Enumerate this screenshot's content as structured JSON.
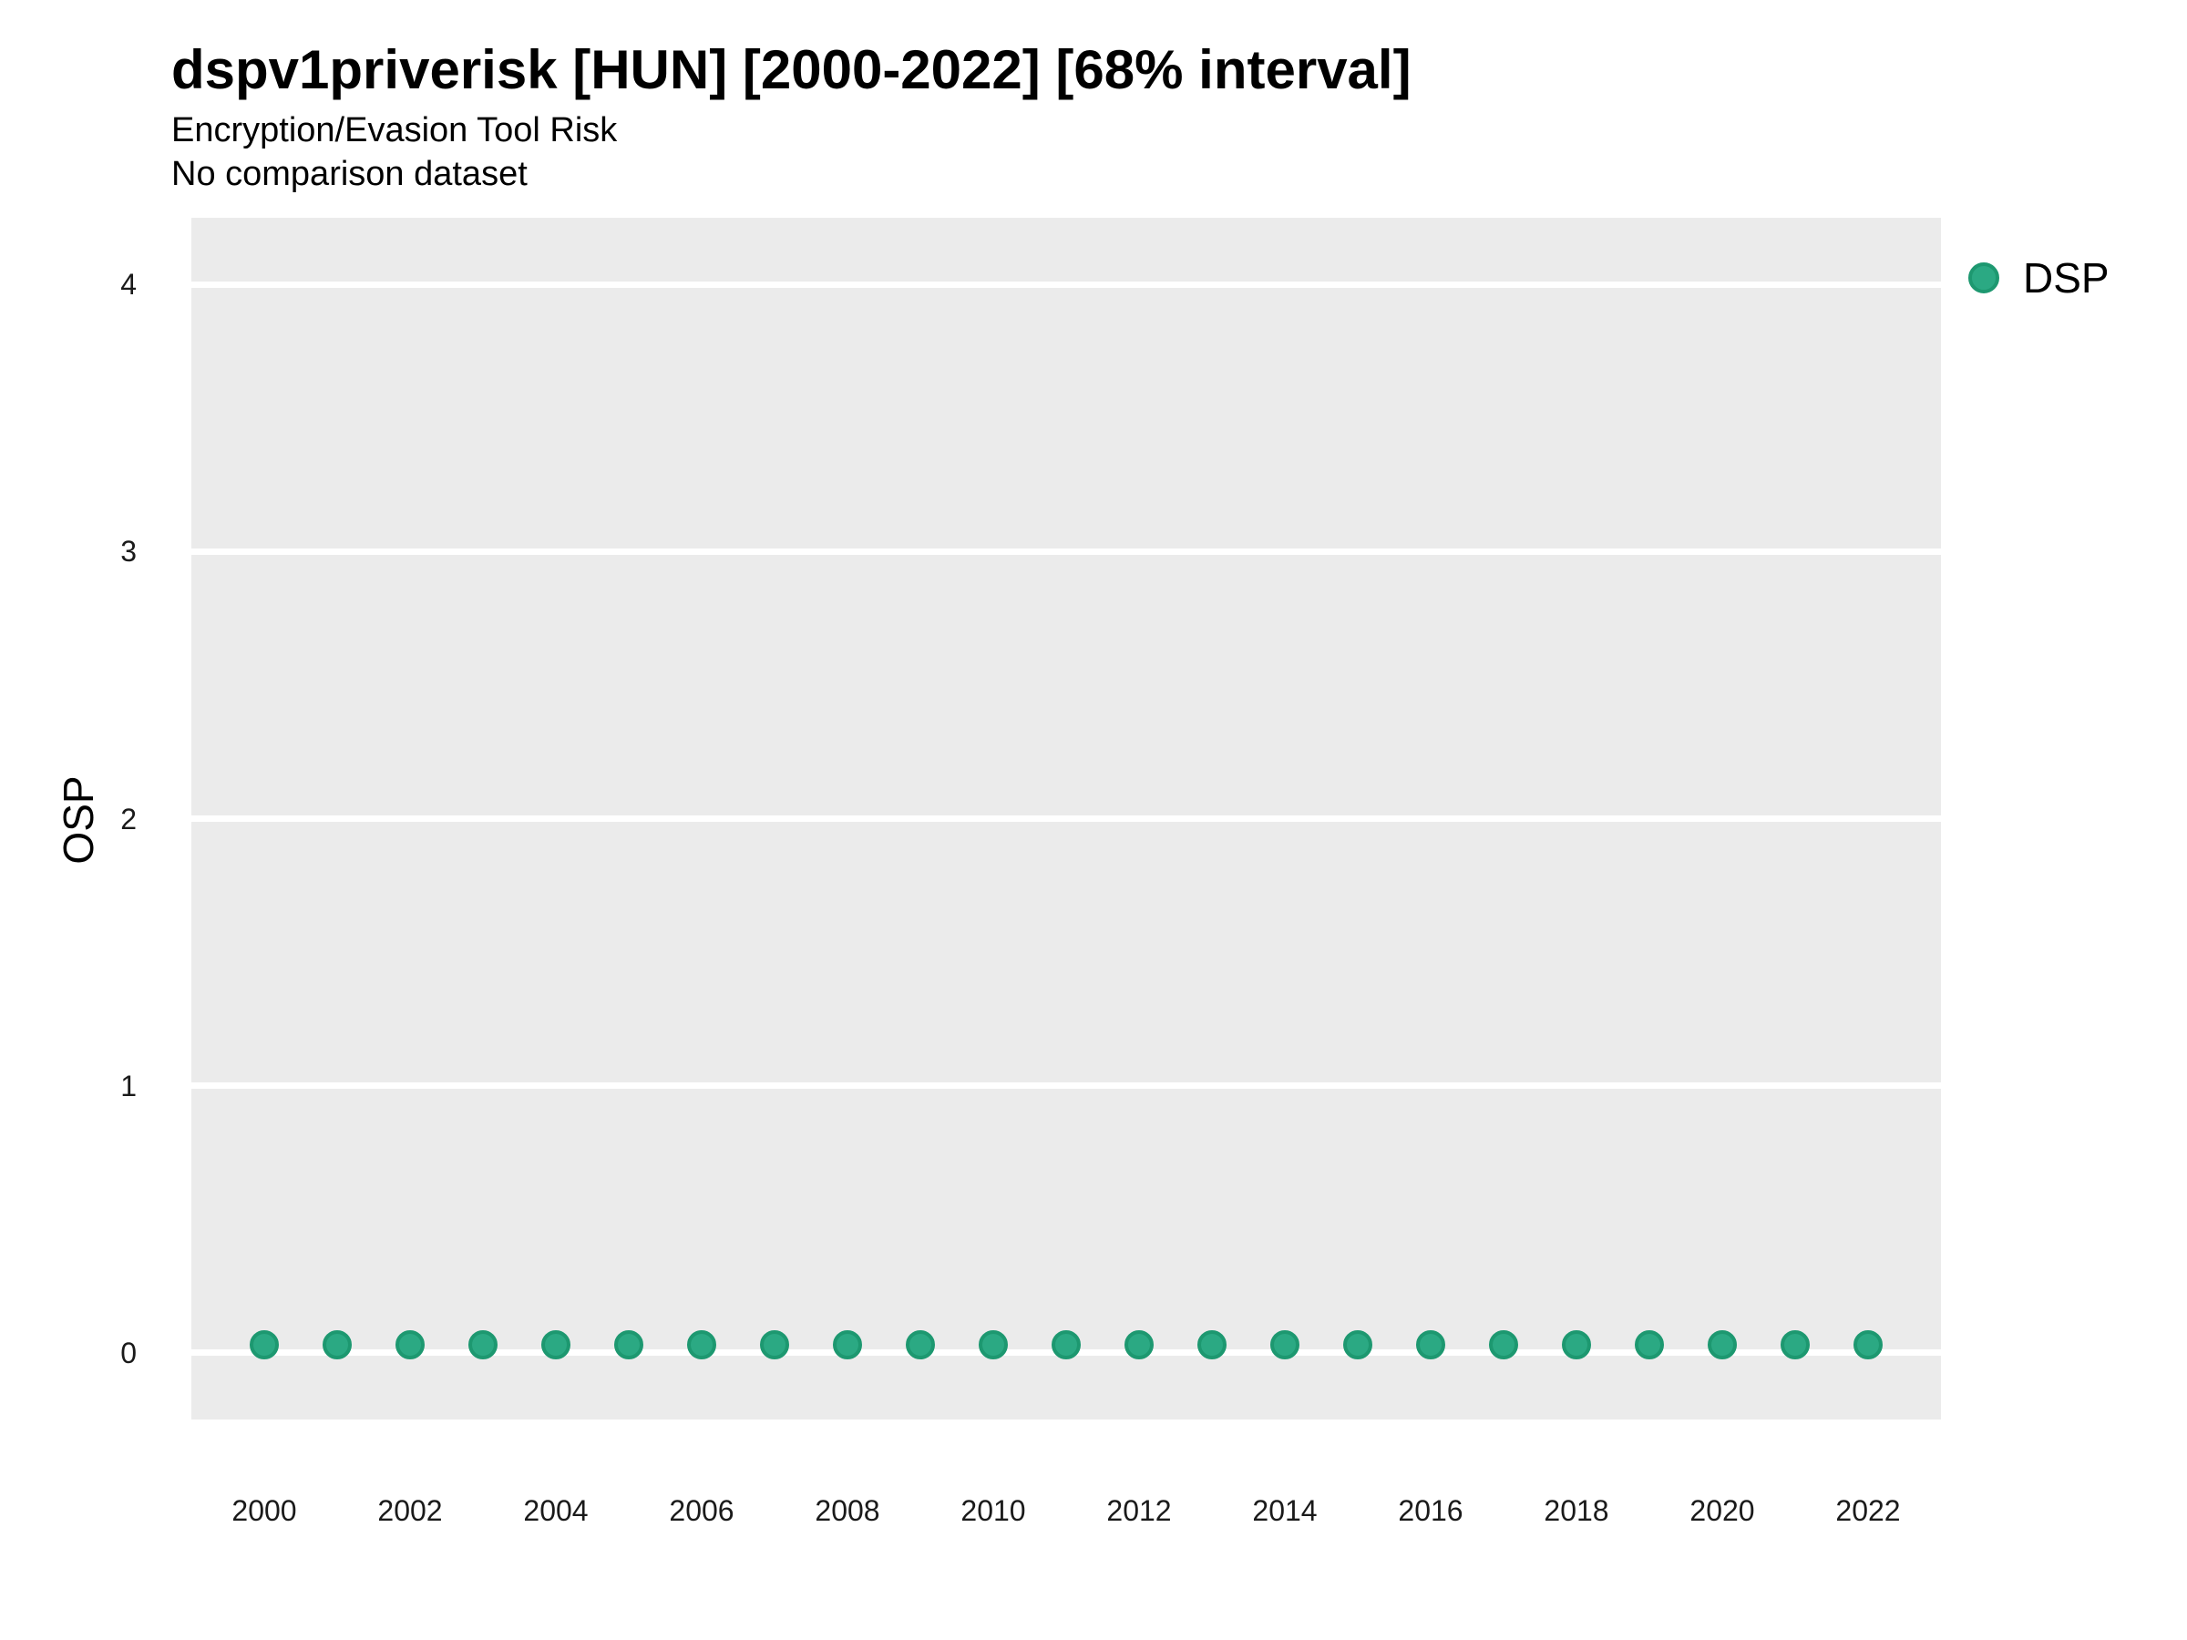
{
  "title": "dspv1priverisk [HUN] [2000-2022] [68% interval]",
  "subtitle1": "Encryption/Evasion Tool Risk",
  "subtitle2": "No comparison dataset",
  "y_axis": {
    "label": "OSP",
    "ticks": [
      0,
      1,
      2,
      3,
      4
    ]
  },
  "x_axis": {
    "ticks": [
      2000,
      2002,
      2004,
      2006,
      2008,
      2010,
      2012,
      2014,
      2016,
      2018,
      2020,
      2022
    ]
  },
  "legend": {
    "label": "DSP",
    "marker_color": "#2BA983",
    "marker_edge_color": "#1D9870"
  },
  "chart_data": {
    "type": "scatter",
    "title": "dspv1priverisk [HUN] [2000-2022] [68% interval]",
    "subtitle": "Encryption/Evasion Tool Risk",
    "note": "No comparison dataset",
    "xlabel": "",
    "ylabel": "OSP",
    "xlim": [
      1999,
      2023
    ],
    "ylim": [
      -0.25,
      4.25
    ],
    "grid": "horizontal-major-only",
    "legend_position": "right-top",
    "panel_bg": "#EBEBEB",
    "grid_color": "#FFFFFF",
    "point_color": "#2BA983",
    "point_edge_color": "#1D9870",
    "series": [
      {
        "name": "DSP",
        "x": [
          2000,
          2001,
          2002,
          2003,
          2004,
          2005,
          2006,
          2007,
          2008,
          2009,
          2010,
          2011,
          2012,
          2013,
          2014,
          2015,
          2016,
          2017,
          2018,
          2019,
          2020,
          2021,
          2022
        ],
        "y": [
          0.03,
          0.03,
          0.03,
          0.03,
          0.03,
          0.03,
          0.03,
          0.03,
          0.03,
          0.03,
          0.03,
          0.03,
          0.03,
          0.03,
          0.03,
          0.03,
          0.03,
          0.03,
          0.03,
          0.03,
          0.03,
          0.03,
          0.03
        ]
      }
    ]
  }
}
